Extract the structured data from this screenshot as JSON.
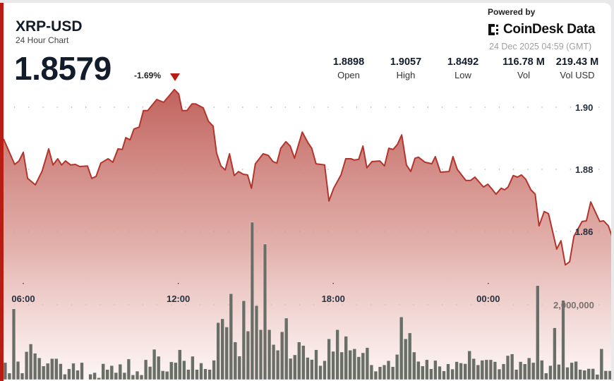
{
  "header": {
    "symbol": "XRP-USD",
    "subtitle": "24 Hour Chart",
    "price": "1.8579",
    "change": "-1.69%",
    "change_direction_icon": "triangle-down-icon",
    "powered_by": "Powered by",
    "brand": "CoinDesk Data",
    "timestamp": "24 Dec 2025 04:59 (GMT)"
  },
  "stats": [
    {
      "value": "1.8898",
      "label": "Open"
    },
    {
      "value": "1.9057",
      "label": "High"
    },
    {
      "value": "1.8492",
      "label": "Low"
    },
    {
      "value": "116.78 M",
      "label": "Vol"
    },
    {
      "value": "219.43 M",
      "label": "Vol USD"
    }
  ],
  "colors": {
    "accent": "#b81d13",
    "line": "#b3342b",
    "bar": "#6b6e66",
    "fill_top": "#c0605a"
  },
  "chart_data": {
    "type": "line",
    "grid": true,
    "x_ticks": [
      "06:00",
      "12:00",
      "18:00",
      "00:00"
    ],
    "y_ticks": [
      "1.90",
      "1.88",
      "1.86"
    ],
    "volume_tick": "2,000,000",
    "ylim": [
      1.85,
      1.9
    ],
    "price_series": [
      [
        "05:15",
        1.8898
      ],
      [
        "05:40",
        1.8816
      ],
      [
        "05:50",
        1.8827
      ],
      [
        "06:00",
        1.8855
      ],
      [
        "06:10",
        1.8771
      ],
      [
        "06:28",
        1.875
      ],
      [
        "06:44",
        1.8795
      ],
      [
        "06:59",
        1.8866
      ],
      [
        "07:09",
        1.8814
      ],
      [
        "07:20",
        1.8834
      ],
      [
        "07:29",
        1.8814
      ],
      [
        "07:38",
        1.8827
      ],
      [
        "07:50",
        1.8814
      ],
      [
        "08:01",
        1.8816
      ],
      [
        "08:11",
        1.8809
      ],
      [
        "08:29",
        1.8811
      ],
      [
        "08:39",
        1.8771
      ],
      [
        "08:49",
        1.8777
      ],
      [
        "09:00",
        1.882
      ],
      [
        "09:17",
        1.8834
      ],
      [
        "09:28",
        1.8823
      ],
      [
        "09:40",
        1.8866
      ],
      [
        "09:50",
        1.8864
      ],
      [
        "09:58",
        1.8902
      ],
      [
        "10:08",
        1.8895
      ],
      [
        "10:17",
        1.893
      ],
      [
        "10:29",
        1.8936
      ],
      [
        "10:39",
        1.8989
      ],
      [
        "10:49",
        1.8989
      ],
      [
        "11:10",
        1.9025
      ],
      [
        "11:26",
        1.9016
      ],
      [
        "11:51",
        1.9057
      ],
      [
        "12:01",
        1.9043
      ],
      [
        "12:09",
        1.8989
      ],
      [
        "12:20",
        1.8989
      ],
      [
        "12:32",
        1.9011
      ],
      [
        "12:40",
        1.9011
      ],
      [
        "12:58",
        1.8998
      ],
      [
        "13:10",
        1.8955
      ],
      [
        "13:21",
        1.8939
      ],
      [
        "13:29",
        1.8852
      ],
      [
        "13:39",
        1.8811
      ],
      [
        "13:49",
        1.8798
      ],
      [
        "13:59",
        1.885
      ],
      [
        "14:10",
        1.878
      ],
      [
        "14:20",
        1.8793
      ],
      [
        "14:31",
        1.8784
      ],
      [
        "14:41",
        1.8782
      ],
      [
        "14:50",
        1.8739
      ],
      [
        "14:59",
        1.8818
      ],
      [
        "15:17",
        1.885
      ],
      [
        "15:29",
        1.8845
      ],
      [
        "15:40",
        1.8825
      ],
      [
        "15:49",
        1.882
      ],
      [
        "15:58",
        1.8868
      ],
      [
        "16:10",
        1.8889
      ],
      [
        "16:20",
        1.8875
      ],
      [
        "16:30",
        1.8836
      ],
      [
        "16:48",
        1.892
      ],
      [
        "17:02",
        1.8884
      ],
      [
        "17:10",
        1.8868
      ],
      [
        "17:20",
        1.8818
      ],
      [
        "17:40",
        1.8814
      ],
      [
        "17:50",
        1.8698
      ],
      [
        "18:01",
        1.8739
      ],
      [
        "18:18",
        1.8782
      ],
      [
        "18:29",
        1.8834
      ],
      [
        "18:41",
        1.8834
      ],
      [
        "18:49",
        1.883
      ],
      [
        "18:59",
        1.8832
      ],
      [
        "19:09",
        1.8875
      ],
      [
        "19:18",
        1.8805
      ],
      [
        "19:30",
        1.8825
      ],
      [
        "19:48",
        1.8827
      ],
      [
        "19:59",
        1.8811
      ],
      [
        "20:09",
        1.8868
      ],
      [
        "20:19",
        1.8864
      ],
      [
        "20:29",
        1.888
      ],
      [
        "20:39",
        1.8911
      ],
      [
        "20:50",
        1.8814
      ],
      [
        "21:00",
        1.8793
      ],
      [
        "21:10",
        1.8836
      ],
      [
        "21:18",
        1.8839
      ],
      [
        "21:33",
        1.8823
      ],
      [
        "21:49",
        1.8818
      ],
      [
        "21:57",
        1.8841
      ],
      [
        "22:09",
        1.8791
      ],
      [
        "22:29",
        1.8793
      ],
      [
        "22:38",
        1.8841
      ],
      [
        "22:48",
        1.88
      ],
      [
        "23:08",
        1.8764
      ],
      [
        "23:19",
        1.8764
      ],
      [
        "23:29",
        1.8775
      ],
      [
        "23:49",
        1.8743
      ],
      [
        "23:59",
        1.8752
      ],
      [
        "00:09",
        1.8736
      ],
      [
        "00:18",
        1.872
      ],
      [
        "00:30",
        1.8739
      ],
      [
        "00:38",
        1.8734
      ],
      [
        "00:46",
        1.8743
      ],
      [
        "00:58",
        1.878
      ],
      [
        "01:08",
        1.8775
      ],
      [
        "01:17",
        1.8782
      ],
      [
        "01:27",
        1.8768
      ],
      [
        "01:39",
        1.8734
      ],
      [
        "01:49",
        1.872
      ],
      [
        "01:58",
        1.8618
      ],
      [
        "02:10",
        1.8664
      ],
      [
        "02:20",
        1.8657
      ],
      [
        "02:39",
        1.8543
      ],
      [
        "02:49",
        1.857
      ],
      [
        "02:59",
        1.8492
      ],
      [
        "03:09",
        1.8502
      ],
      [
        "03:19",
        1.8584
      ],
      [
        "03:38",
        1.8632
      ],
      [
        "03:48",
        1.8634
      ],
      [
        "03:58",
        1.8695
      ],
      [
        "04:19",
        1.8632
      ],
      [
        "04:28",
        1.8634
      ],
      [
        "04:39",
        1.8618
      ],
      [
        "04:49",
        1.8579
      ]
    ],
    "volume": [
      440000,
      157000,
      1890000,
      472000,
      157000,
      736000,
      943000,
      692000,
      566000,
      346000,
      421000,
      547000,
      547000,
      409000,
      126000,
      270000,
      421000,
      233000,
      440000,
      0,
      126000,
      170000,
      31000,
      409000,
      252000,
      358000,
      170000,
      396000,
      170000,
      535000,
      107000,
      208000,
      107000,
      516000,
      333000,
      799000,
      610000,
      220000,
      201000,
      459000,
      440000,
      786000,
      491000,
      252000,
      610000,
      252000,
      428000,
      270000,
      252000,
      503000,
      1520000,
      1620000,
      1400000,
      2300000,
      994000,
      616000,
      2110000,
      1290000,
      4230000,
      1980000,
      1330000,
      3640000,
      1330000,
      925000,
      774000,
      1270000,
      1640000,
      553000,
      648000,
      994000,
      899000,
      579000,
      522000,
      786000,
      358000,
      491000,
      1080000,
      742000,
      1330000,
      723000,
      1150000,
      774000,
      811000,
      598000,
      704000,
      843000,
      377000,
      208000,
      327000,
      377000,
      491000,
      327000,
      660000,
      1670000,
      1080000,
      1240000,
      723000,
      472000,
      346000,
      516000,
      270000,
      497000,
      340000,
      214000,
      403000,
      264000,
      465000,
      428000,
      409000,
      755000,
      547000,
      377000,
      503000,
      516000,
      516000,
      465000,
      264000,
      403000,
      629000,
      673000,
      252000,
      465000,
      403000,
      566000,
      440000,
      2520000,
      503000,
      157000,
      359000,
      1380000,
      390000,
      2120000,
      315000,
      440000,
      472000,
      252000,
      233000,
      277000,
      277000,
      120000,
      811000,
      220000,
      220000
    ]
  }
}
